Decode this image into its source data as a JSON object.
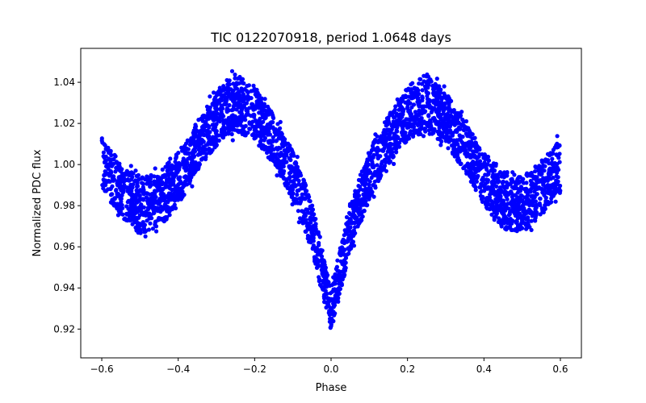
{
  "chart_data": {
    "type": "scatter",
    "title": "TIC 0122070918, period 1.0648 days",
    "xlabel": "Phase",
    "ylabel": "Normalized PDC flux",
    "xlim": [
      -0.655,
      0.655
    ],
    "ylim": [
      0.906,
      1.0565
    ],
    "xticks": [
      -0.6,
      -0.4,
      -0.2,
      0.0,
      0.2,
      0.4,
      0.6
    ],
    "xtick_labels": [
      "−0.6",
      "−0.4",
      "−0.2",
      "0.0",
      "0.2",
      "0.4",
      "0.6"
    ],
    "yticks": [
      0.92,
      0.94,
      0.96,
      0.98,
      1.0,
      1.02,
      1.04
    ],
    "ytick_labels": [
      "0.92",
      "0.94",
      "0.96",
      "0.98",
      "1.00",
      "1.02",
      "1.04"
    ],
    "grid": false,
    "color": "#0000ff",
    "series": [
      {
        "name": "PDC flux",
        "phase": [
          -0.6,
          -0.55,
          -0.5,
          -0.45,
          -0.4,
          -0.35,
          -0.3,
          -0.25,
          -0.2,
          -0.15,
          -0.1,
          -0.05,
          -0.02,
          0.0,
          0.02,
          0.05,
          0.1,
          0.15,
          0.2,
          0.25,
          0.3,
          0.35,
          0.4,
          0.45,
          0.5,
          0.55,
          0.6
        ],
        "flux": [
          1.0,
          0.988,
          0.98,
          0.983,
          0.993,
          1.009,
          1.022,
          1.03,
          1.025,
          1.012,
          0.995,
          0.97,
          0.945,
          0.93,
          0.945,
          0.97,
          0.995,
          1.012,
          1.025,
          1.03,
          1.022,
          1.009,
          0.993,
          0.983,
          0.98,
          0.988,
          1.0
        ],
        "scatter_halfwidth": [
          0.013,
          0.013,
          0.014,
          0.014,
          0.013,
          0.012,
          0.013,
          0.014,
          0.013,
          0.012,
          0.012,
          0.012,
          0.011,
          0.011,
          0.011,
          0.012,
          0.012,
          0.012,
          0.013,
          0.014,
          0.013,
          0.012,
          0.013,
          0.014,
          0.014,
          0.013,
          0.013
        ]
      }
    ]
  }
}
